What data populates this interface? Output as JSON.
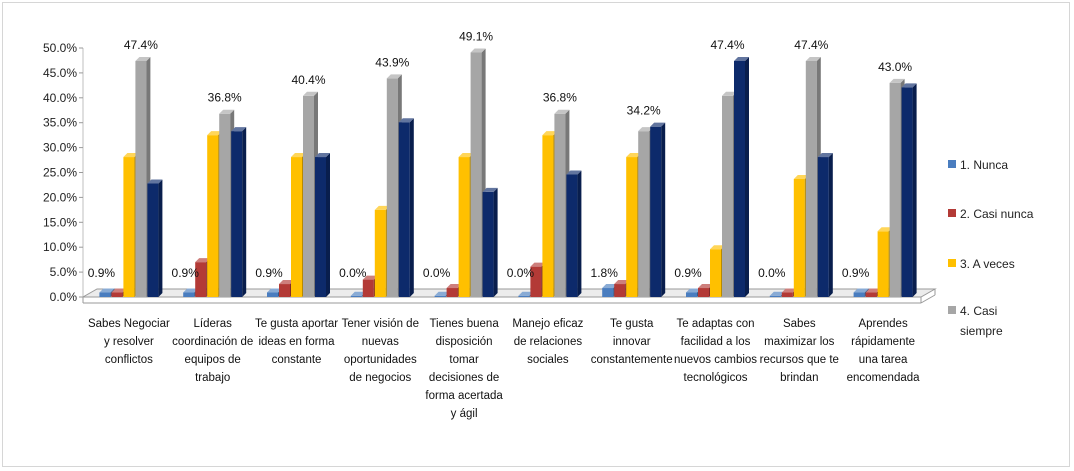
{
  "chart_data": {
    "type": "bar",
    "ylim": [
      0,
      50
    ],
    "yticks": [
      "0.0%",
      "5.0%",
      "10.0%",
      "15.0%",
      "20.0%",
      "25.0%",
      "30.0%",
      "35.0%",
      "40.0%",
      "45.0%",
      "50.0%"
    ],
    "grid": false,
    "legend_position": "right",
    "categories": [
      [
        "Sabes Negociar",
        "y resolver",
        "conflictos"
      ],
      [
        "Líderas",
        "coordinación de",
        "equipos de",
        "trabajo"
      ],
      [
        "Te gusta aportar",
        "ideas en forma",
        "constante"
      ],
      [
        "Tener visión de",
        "nuevas",
        "oportunidades",
        "de negocios"
      ],
      [
        "Tienes buena",
        "disposición",
        "tomar",
        "decisiones de",
        "forma acertada",
        "y ágil"
      ],
      [
        "Manejo eficaz",
        "de relaciones",
        "sociales"
      ],
      [
        "Te gusta",
        "innovar",
        "constantemente"
      ],
      [
        "Te adaptas con",
        "facilidad a los",
        "nuevos cambios",
        "tecnológicos"
      ],
      [
        "Sabes",
        "maximizar los",
        "recursos que te",
        "brindan"
      ],
      [
        "Aprendes",
        "rápidamente",
        "una tarea",
        "encomendada"
      ]
    ],
    "series": [
      {
        "name": "1. Nunca",
        "color": "#4a7dbf",
        "values": [
          0.9,
          0.9,
          0.9,
          0.0,
          0.0,
          0.0,
          1.8,
          0.9,
          0.0,
          0.9
        ]
      },
      {
        "name": "2. Casi nunca",
        "color": "#b33a36",
        "values": [
          0.9,
          7.0,
          2.6,
          3.5,
          1.8,
          6.1,
          2.6,
          1.8,
          0.9,
          0.9
        ]
      },
      {
        "name": "3. A veces",
        "color": "#ffc000",
        "values": [
          28.1,
          32.5,
          28.1,
          17.5,
          28.1,
          32.5,
          28.1,
          9.6,
          23.7,
          13.2
        ]
      },
      {
        "name": "4. Casi siempre",
        "color": "#a6a6a6",
        "values": [
          47.4,
          36.8,
          40.4,
          43.9,
          49.1,
          36.8,
          33.3,
          40.4,
          47.4,
          43.0
        ]
      },
      {
        "name": "",
        "color": "#0d2a6b",
        "values": [
          22.8,
          33.3,
          28.1,
          35.1,
          21.1,
          24.6,
          34.2,
          47.4,
          28.1,
          42.1
        ]
      }
    ],
    "data_labels": {
      "series_1": [
        "0.9%",
        "0.9%",
        "0.9%",
        "0.0%",
        "0.0%",
        "0.0%",
        "1.8%",
        "0.9%",
        "0.0%",
        "0.9%"
      ],
      "top": [
        "47.4%",
        "36.8%",
        "40.4%",
        "43.9%",
        "49.1%",
        "36.8%",
        "34.2%",
        "47.4%",
        "47.4%",
        "43.0%"
      ]
    }
  },
  "legend": {
    "items": [
      {
        "lines": [
          "1. Nunca"
        ],
        "color": "#4a7dbf"
      },
      {
        "lines": [
          "2. Casi nunca"
        ],
        "color": "#b33a36"
      },
      {
        "lines": [
          "3. A veces"
        ],
        "color": "#ffc000"
      },
      {
        "lines": [
          "4. Casi",
          "siempre"
        ],
        "color": "#a6a6a6"
      }
    ]
  }
}
